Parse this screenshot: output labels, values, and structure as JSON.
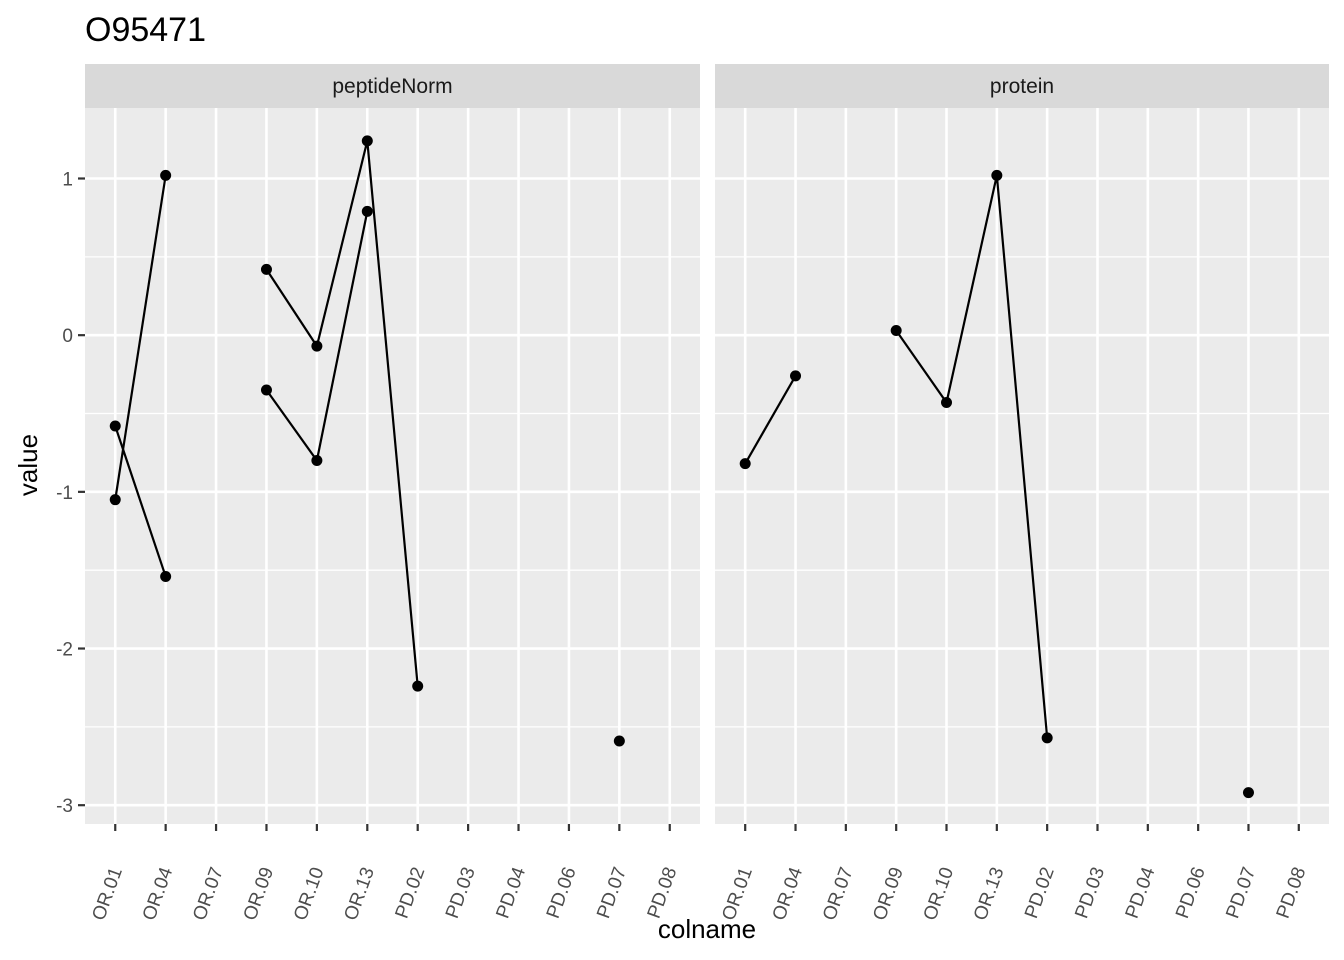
{
  "title": "O95471",
  "chart_data": {
    "type": "line",
    "title": "O95471",
    "xlabel": "colname",
    "ylabel": "value",
    "ylim": [
      -3.12,
      1.45
    ],
    "yticks": [
      -3,
      -2,
      -1,
      0,
      1
    ],
    "categories": [
      "OR.01",
      "OR.04",
      "OR.07",
      "OR.09",
      "OR.10",
      "OR.13",
      "PD.02",
      "PD.03",
      "PD.04",
      "PD.06",
      "PD.07",
      "PD.08"
    ],
    "grid": true,
    "background": "#ebebeb",
    "strip_color": "#d9d9d9",
    "line_color": "#000000",
    "point_color": "#000000",
    "facets": [
      {
        "label": "peptideNorm",
        "series": [
          {
            "points": [
              [
                "OR.01",
                -0.58
              ],
              [
                "OR.04",
                -1.54
              ]
            ]
          },
          {
            "points": [
              [
                "OR.01",
                -1.05
              ],
              [
                "OR.04",
                1.02
              ]
            ]
          },
          {
            "points": [
              [
                "OR.09",
                0.42
              ],
              [
                "OR.10",
                -0.07
              ],
              [
                "OR.13",
                1.24
              ],
              [
                "PD.02",
                -2.24
              ]
            ]
          },
          {
            "points": [
              [
                "OR.09",
                -0.35
              ],
              [
                "OR.10",
                -0.8
              ],
              [
                "OR.13",
                0.79
              ]
            ]
          },
          {
            "points": [
              [
                "PD.07",
                -2.59
              ]
            ]
          }
        ]
      },
      {
        "label": "protein",
        "series": [
          {
            "points": [
              [
                "OR.01",
                -0.82
              ],
              [
                "OR.04",
                -0.26
              ]
            ]
          },
          {
            "points": [
              [
                "OR.09",
                0.03
              ],
              [
                "OR.10",
                -0.43
              ],
              [
                "OR.13",
                1.02
              ],
              [
                "PD.02",
                -2.57
              ]
            ]
          },
          {
            "points": [
              [
                "PD.07",
                -2.92
              ]
            ]
          }
        ]
      }
    ]
  }
}
